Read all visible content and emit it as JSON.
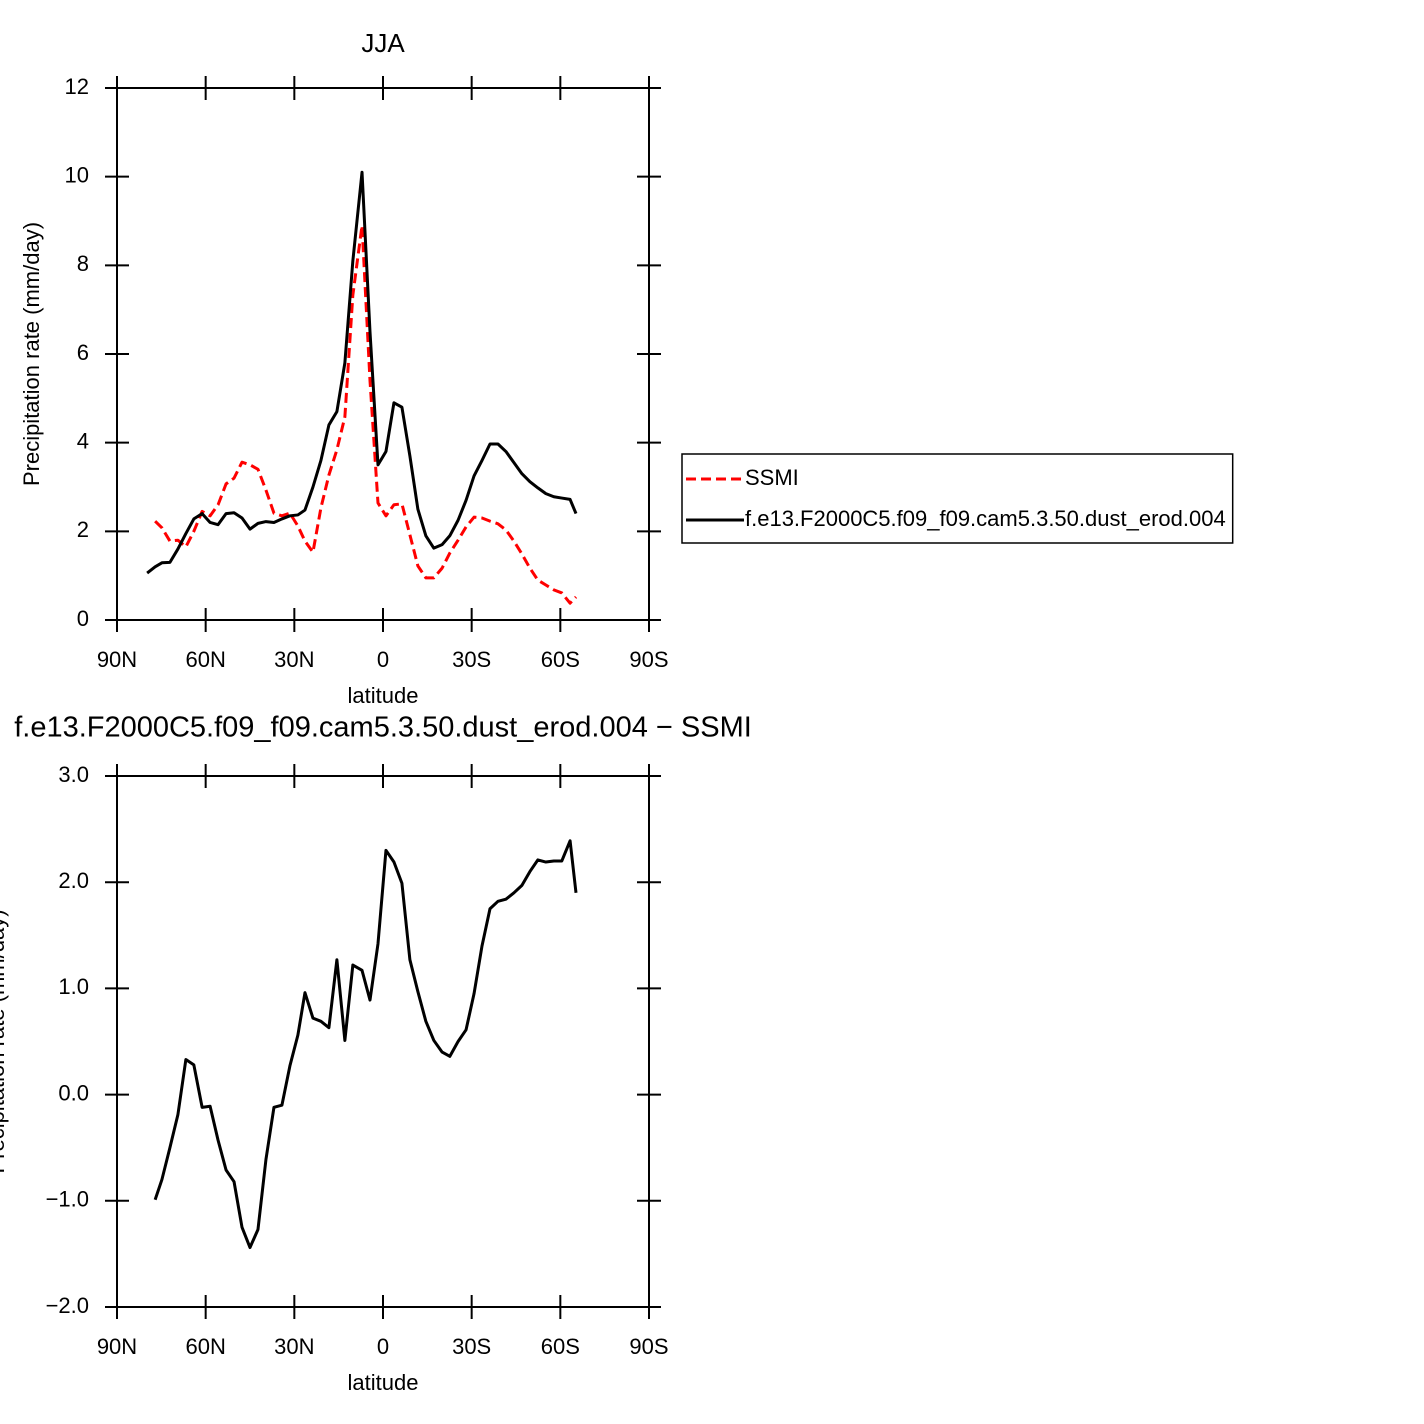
{
  "chart_data": [
    {
      "type": "line",
      "title": "JJA",
      "xlabel": "latitude",
      "ylabel": "Precipitation rate (mm/day)",
      "x": [
        79.8,
        77.1,
        74.8,
        72.1,
        69.4,
        66.7,
        64.0,
        61.2,
        58.5,
        55.8,
        53.1,
        50.4,
        47.7,
        45.0,
        42.3,
        39.6,
        36.9,
        34.2,
        31.5,
        28.8,
        26.4,
        23.7,
        21.0,
        18.3,
        15.6,
        12.9,
        10.2,
        7.1,
        4.4,
        1.7,
        -1.0,
        -3.7,
        -6.4,
        -9.1,
        -11.8,
        -14.5,
        -17.2,
        -20.0,
        -22.6,
        -25.4,
        -28.1,
        -30.8,
        -33.5,
        -36.2,
        -38.9,
        -41.6,
        -44.3,
        -47.0,
        -49.7,
        -52.4,
        -55.1,
        -57.8,
        -60.5,
        -63.3,
        -65.3
      ],
      "xlim": [
        90,
        -90
      ],
      "xticks": [
        {
          "value": 90,
          "label": "90N"
        },
        {
          "value": 60,
          "label": "60N"
        },
        {
          "value": 30,
          "label": "30N"
        },
        0,
        {
          "value": -30,
          "label": "30S"
        },
        {
          "value": -60,
          "label": "60S"
        },
        {
          "value": -90,
          "label": "90S"
        }
      ],
      "ylim": [
        0,
        12
      ],
      "yticks": [
        0,
        2,
        4,
        6,
        8,
        10,
        12
      ],
      "legend": "right",
      "series": [
        {
          "name": "SSMI",
          "color": "#ff0000",
          "linestyle": "dashed",
          "values": [
            null,
            2.23,
            2.08,
            1.78,
            1.8,
            1.65,
            2.0,
            2.45,
            2.35,
            2.6,
            3.07,
            3.2,
            3.56,
            3.5,
            3.4,
            2.93,
            2.41,
            2.35,
            2.41,
            2.12,
            1.78,
            1.53,
            2.53,
            3.27,
            3.84,
            4.58,
            7.33,
            8.9,
            5.4,
            2.64,
            2.35,
            2.6,
            2.62,
            1.92,
            1.22,
            0.95,
            0.95,
            1.17,
            1.51,
            1.8,
            2.1,
            2.32,
            2.3,
            2.23,
            2.17,
            2.03,
            1.78,
            1.49,
            1.17,
            0.9,
            0.79,
            0.68,
            0.61,
            0.38,
            0.52
          ]
        },
        {
          "name": "f.e13.F2000C5.f09_f09.cam5.3.50.dust_erod.004",
          "color": "#000000",
          "linestyle": "solid",
          "values": [
            1.06,
            1.2,
            1.29,
            1.3,
            1.6,
            1.95,
            2.28,
            2.4,
            2.2,
            2.15,
            2.4,
            2.42,
            2.3,
            2.05,
            2.18,
            2.22,
            2.2,
            2.28,
            2.35,
            2.37,
            2.48,
            3.0,
            3.6,
            4.4,
            4.7,
            5.8,
            8.1,
            10.1,
            6.5,
            3.5,
            3.8,
            4.9,
            4.8,
            3.7,
            2.5,
            1.9,
            1.62,
            1.7,
            1.9,
            2.25,
            2.7,
            3.25,
            3.6,
            3.97,
            3.97,
            3.8,
            3.55,
            3.3,
            3.12,
            2.98,
            2.85,
            2.78,
            2.75,
            2.72,
            2.4
          ]
        }
      ]
    },
    {
      "type": "line",
      "title": "f.e13.F2000C5.f09_f09.cam5.3.50.dust_erod.004 − SSMI",
      "xlabel": "latitude",
      "ylabel": "Precipitation rate (mm/day)",
      "x": [
        79.8,
        77.1,
        74.8,
        72.1,
        69.4,
        66.7,
        64.0,
        61.2,
        58.5,
        55.8,
        53.1,
        50.4,
        47.7,
        45.0,
        42.3,
        39.6,
        36.9,
        34.2,
        31.5,
        28.8,
        26.4,
        23.7,
        21.0,
        18.3,
        15.6,
        12.9,
        10.2,
        7.1,
        4.4,
        1.7,
        -1.0,
        -3.7,
        -6.4,
        -9.1,
        -11.8,
        -14.5,
        -17.2,
        -20.0,
        -22.6,
        -25.4,
        -28.1,
        -30.8,
        -33.5,
        -36.2,
        -38.9,
        -41.6,
        -44.3,
        -47.0,
        -49.7,
        -52.4,
        -55.1,
        -57.8,
        -60.5,
        -63.3,
        -65.3
      ],
      "xlim": [
        90,
        -90
      ],
      "xticks": [
        {
          "value": 90,
          "label": "90N"
        },
        {
          "value": 60,
          "label": "60N"
        },
        {
          "value": 30,
          "label": "30N"
        },
        0,
        {
          "value": -30,
          "label": "30S"
        },
        {
          "value": -60,
          "label": "60S"
        },
        {
          "value": -90,
          "label": "90S"
        }
      ],
      "ylim": [
        -2,
        3
      ],
      "yticks": [
        {
          "value": -2,
          "label": "−2.0"
        },
        {
          "value": -1,
          "label": "−1.0"
        },
        {
          "value": 0,
          "label": "0.0"
        },
        {
          "value": 1,
          "label": "1.0"
        },
        {
          "value": 2,
          "label": "2.0"
        },
        {
          "value": 3,
          "label": "3.0"
        }
      ],
      "series": [
        {
          "color": "#000000",
          "linestyle": "solid",
          "values": [
            null,
            -0.99,
            -0.8,
            -0.5,
            -0.19,
            0.33,
            0.28,
            -0.12,
            -0.11,
            -0.43,
            -0.71,
            -0.82,
            -1.25,
            -1.44,
            -1.27,
            -0.61,
            -0.12,
            -0.1,
            0.27,
            0.56,
            0.96,
            0.72,
            0.69,
            0.63,
            1.27,
            0.51,
            1.22,
            1.17,
            0.89,
            1.42,
            2.3,
            2.19,
            1.99,
            1.27,
            0.97,
            0.69,
            0.51,
            0.4,
            0.36,
            0.5,
            0.61,
            0.95,
            1.4,
            1.75,
            1.82,
            1.84,
            1.9,
            1.97,
            2.1,
            2.21,
            2.19,
            2.2,
            2.2,
            2.39,
            1.9
          ]
        }
      ]
    }
  ]
}
